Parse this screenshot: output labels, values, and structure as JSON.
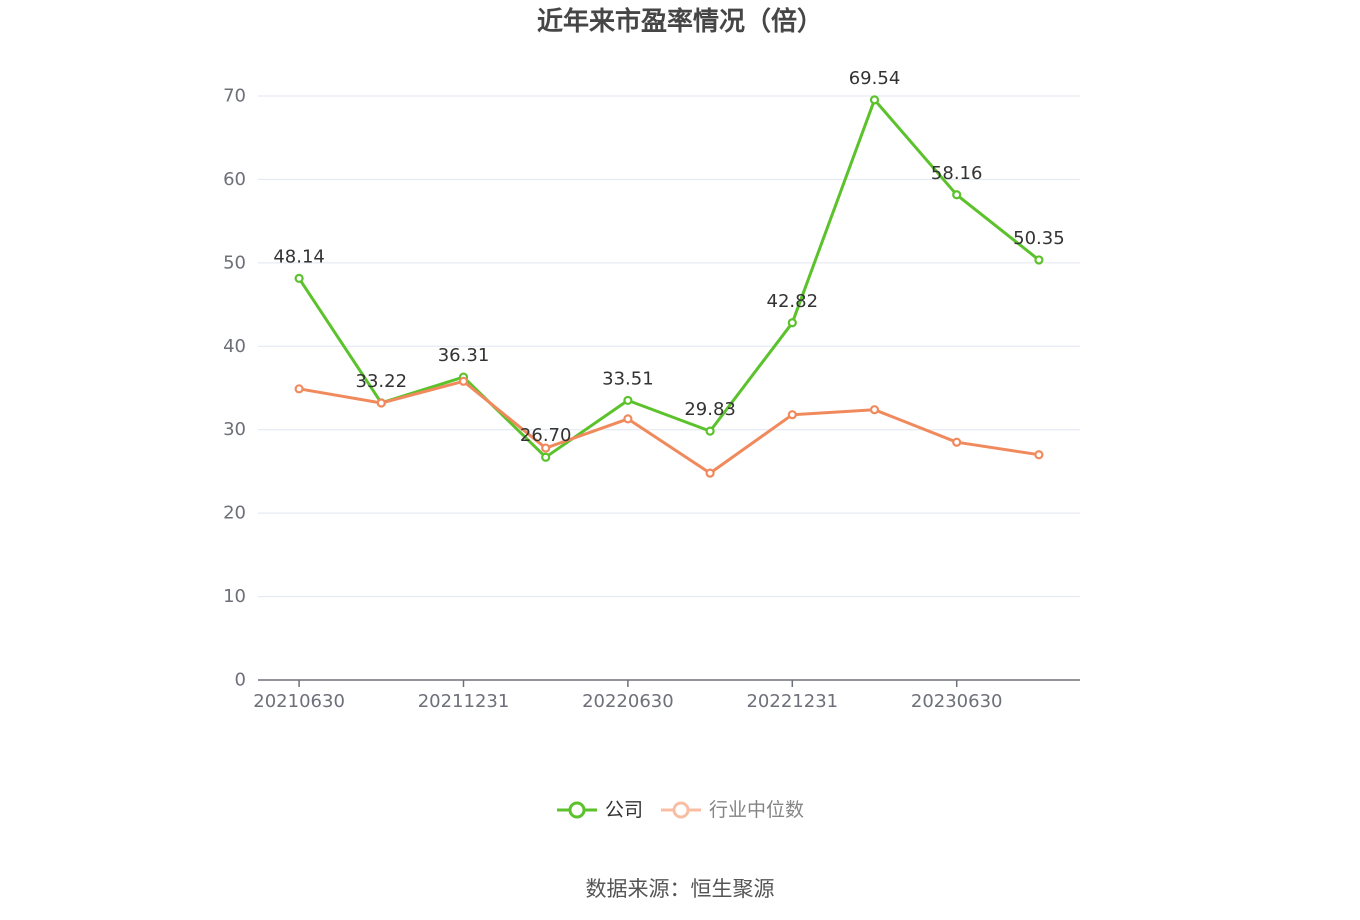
{
  "chart_data": {
    "type": "line",
    "title": "近年来市盈率情况（倍）",
    "categories": [
      "20210630",
      "",
      "20211231",
      "",
      "20220630",
      "",
      "20221231",
      "",
      "20230630",
      ""
    ],
    "ylim": [
      0,
      70
    ],
    "yticks": [
      0,
      10,
      20,
      30,
      40,
      50,
      60,
      70
    ],
    "grid": true,
    "legend_position": "bottom",
    "series": [
      {
        "name": "公司",
        "color": "#5bc22c",
        "values": [
          48.14,
          33.22,
          36.31,
          26.7,
          33.51,
          29.83,
          42.82,
          69.54,
          58.16,
          50.35
        ],
        "data_labels": [
          "48.14",
          "33.22",
          "36.31",
          "26.70",
          "33.51",
          "29.83",
          "42.82",
          "69.54",
          "58.16",
          "50.35"
        ],
        "legend_icon_color": "#5bc22c",
        "legend_text_color": "#333333"
      },
      {
        "name": "行业中位数",
        "color": "#f08a5d",
        "values": [
          34.9,
          33.2,
          35.8,
          27.8,
          31.3,
          24.8,
          31.8,
          32.4,
          28.5,
          27.0
        ],
        "legend_icon_color": "#f8bea4",
        "legend_text_color": "#858585"
      }
    ]
  },
  "source": "数据来源：恒生聚源"
}
